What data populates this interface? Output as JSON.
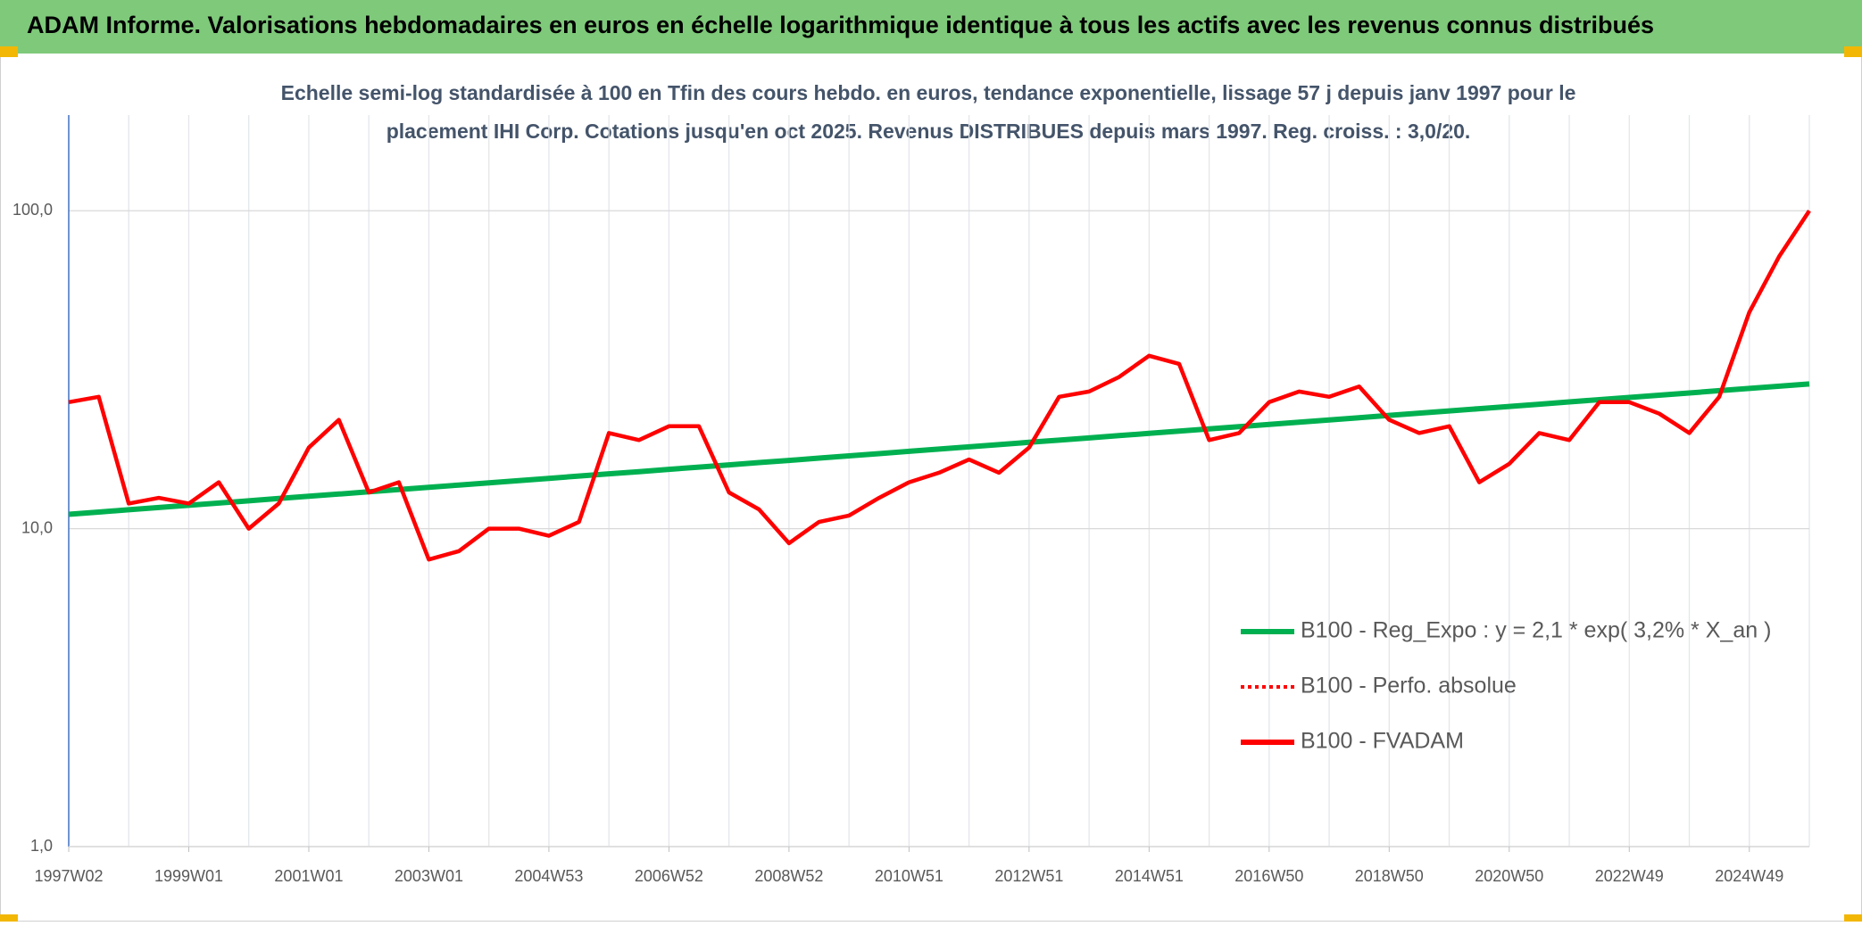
{
  "chart_data": {
    "type": "line",
    "title": "ADAM Informe. Valorisations hebdomadaires en euros en échelle logarithmique identique à tous les actifs avec les revenus connus distribués",
    "subtitle": [
      "Echelle semi-log standardisée à 100 en Tfin des cours hebdo. en euros, tendance exponentielle, lissage 57 j depuis janv 1997 pour le",
      "placement IHI Corp. Cotations jusqu'en oct 2025. Revenus DISTRIBUES depuis mars 1997. Reg. croiss. : 3,0/20."
    ],
    "categories": [
      "1997W02",
      null,
      null,
      null,
      "1999W01",
      null,
      null,
      null,
      "2001W01",
      null,
      null,
      null,
      "2003W01",
      null,
      null,
      null,
      "2004W53",
      null,
      null,
      null,
      "2006W52",
      null,
      null,
      null,
      "2008W52",
      null,
      null,
      null,
      "2010W51",
      null,
      null,
      null,
      "2012W51",
      null,
      null,
      null,
      "2014W51",
      null,
      null,
      null,
      "2016W50",
      null,
      null,
      null,
      "2018W50",
      null,
      null,
      null,
      "2020W50",
      null,
      null,
      null,
      "2022W49",
      null,
      null,
      null,
      "2024W49",
      null,
      null
    ],
    "series": [
      {
        "name": "B100 - Reg_Expo : y = 2,1 * exp( 3,2% *  X_an )",
        "color": "#00b050",
        "style": "solid",
        "values": [
          11.1,
          11.28,
          11.47,
          11.66,
          11.85,
          12.04,
          12.24,
          12.44,
          12.65,
          12.85,
          13.06,
          13.28,
          13.5,
          13.72,
          13.94,
          14.17,
          14.4,
          14.64,
          14.88,
          15.12,
          15.37,
          15.62,
          15.88,
          16.14,
          16.4,
          16.67,
          16.95,
          17.22,
          17.51,
          17.8,
          18.09,
          18.38,
          18.69,
          18.99,
          19.3,
          19.62,
          19.94,
          20.27,
          20.6,
          20.94,
          21.28,
          21.63,
          21.99,
          22.35,
          22.72,
          23.09,
          23.47,
          23.85,
          24.24,
          24.64,
          25.05,
          25.46,
          25.88,
          26.3,
          26.73,
          27.17,
          27.62,
          28.07,
          28.53
        ]
      },
      {
        "name": "B100 - Perfo. absolue",
        "color": "#ff0000",
        "style": "dotted",
        "values": [
          null,
          null,
          null,
          null,
          null,
          null,
          null,
          null,
          null,
          null,
          null,
          null,
          null,
          null,
          null,
          null,
          null,
          null,
          null,
          null,
          null,
          null,
          null,
          null,
          null,
          null,
          null,
          null,
          null,
          null,
          null,
          null,
          null,
          null,
          null,
          null,
          null,
          null,
          null,
          null,
          null,
          null,
          null,
          null,
          null,
          null,
          null,
          null,
          null,
          null,
          null,
          null,
          null,
          null,
          null,
          null,
          null,
          null,
          null
        ]
      },
      {
        "name": "B100 - FVADAM",
        "color": "#ff0000",
        "style": "solid",
        "values": [
          25,
          26,
          12,
          12.5,
          12,
          14,
          10,
          12,
          18,
          22,
          13,
          14,
          8,
          8.5,
          10,
          10,
          9.5,
          10.5,
          20,
          19,
          21,
          21,
          13,
          11.5,
          9,
          10.5,
          11,
          12.5,
          14,
          15,
          16.5,
          15,
          18,
          26,
          27,
          30,
          35,
          33,
          19,
          20,
          25,
          27,
          26,
          28,
          22,
          20,
          21,
          14,
          16,
          20,
          19,
          25,
          25,
          23,
          20,
          26,
          48,
          72,
          100
        ]
      }
    ],
    "log_scale": true,
    "ylim": [
      1,
      200
    ],
    "yticks": [
      {
        "value": 1,
        "label": "1,0"
      },
      {
        "value": 10,
        "label": "10,0"
      },
      {
        "value": 100,
        "label": "100,0"
      }
    ],
    "grid": true,
    "legend": "lower-right"
  }
}
